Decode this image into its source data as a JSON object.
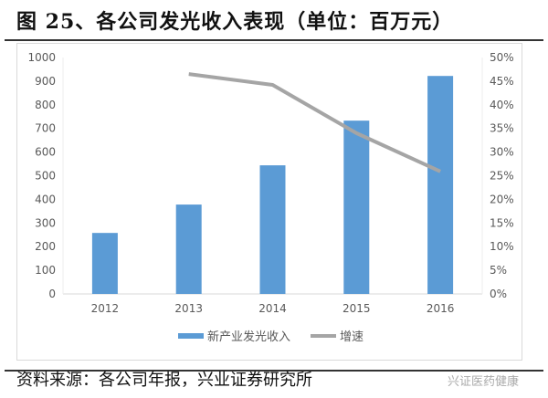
{
  "title": "图 25、各公司发光收入表现（单位：百万元）",
  "source": "资料来源：各公司年报，兴业证券研究所",
  "watermark": "兴证医药健康",
  "chart_data": {
    "type": "bar",
    "title": "",
    "categories": [
      "2012",
      "2013",
      "2014",
      "2015",
      "2016"
    ],
    "left_axis": {
      "ylim": [
        0,
        1000
      ],
      "ticks": [
        0,
        100,
        200,
        300,
        400,
        500,
        600,
        700,
        800,
        900,
        1000
      ]
    },
    "right_axis": {
      "ylim": [
        0,
        50
      ],
      "ticks": [
        "0%",
        "5%",
        "10%",
        "15%",
        "20%",
        "25%",
        "30%",
        "35%",
        "40%",
        "45%",
        "50%"
      ]
    },
    "series": [
      {
        "name": "新产业发光收入",
        "type": "bar",
        "axis": "left",
        "color": "#5b9bd5",
        "values": [
          258,
          378,
          544,
          733,
          922
        ]
      },
      {
        "name": "增速",
        "type": "line",
        "axis": "right",
        "color": "#a5a5a5",
        "values": [
          null,
          46.5,
          44.2,
          34.0,
          25.9
        ]
      }
    ],
    "grid": false,
    "legend": "bottom"
  }
}
